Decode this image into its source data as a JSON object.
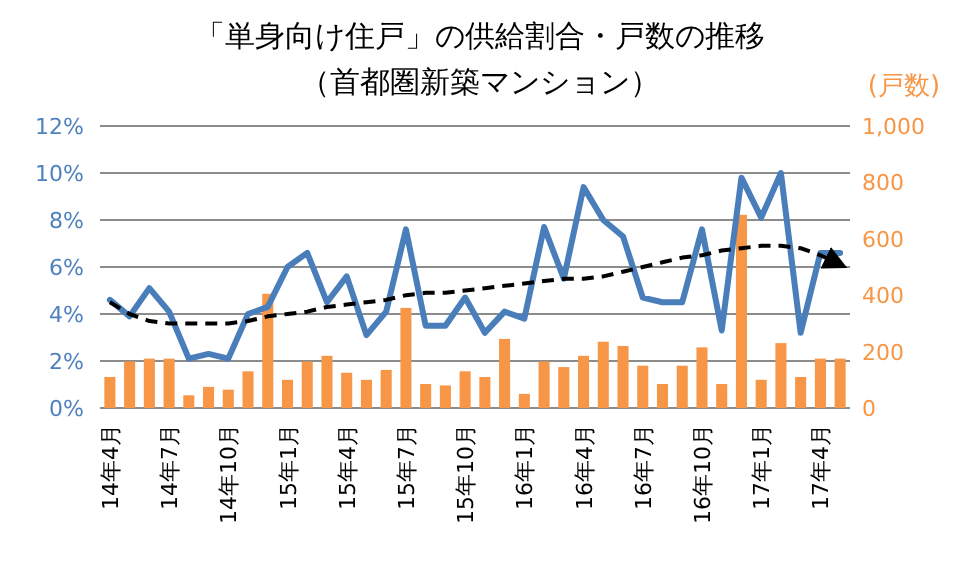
{
  "chart_data": {
    "type": "bar",
    "title": "「単身向け住戸」の供給割合・戸数の推移",
    "subtitle": "（首都圏新築マンション）",
    "y2label": "(戸数)",
    "categories": [
      "14年4月",
      null,
      null,
      "14年7月",
      null,
      null,
      "14年10月",
      null,
      null,
      "15年1月",
      null,
      null,
      "15年4月",
      null,
      null,
      "15年7月",
      null,
      null,
      "15年10月",
      null,
      null,
      "16年1月",
      null,
      null,
      "16年4月",
      null,
      null,
      "16年7月",
      null,
      null,
      "16年10月",
      null,
      null,
      "17年1月",
      null,
      null,
      "17年4月",
      null
    ],
    "series": [
      {
        "axis": "y2",
        "color": "#f79646",
        "values": [
          110,
          165,
          175,
          175,
          45,
          75,
          65,
          130,
          405,
          100,
          165,
          185,
          125,
          100,
          135,
          355,
          85,
          80,
          130,
          110,
          245,
          50,
          165,
          145,
          185,
          235,
          220,
          150,
          85,
          150,
          215,
          85,
          685,
          100,
          230,
          110,
          175,
          175
        ]
      },
      {
        "type": "line",
        "color": "#4a7ebb",
        "values": [
          4.6,
          3.9,
          5.1,
          4.1,
          2.1,
          2.3,
          2.1,
          4.0,
          4.3,
          6.0,
          6.6,
          4.5,
          5.6,
          3.1,
          4.1,
          7.6,
          3.5,
          3.5,
          4.7,
          3.2,
          4.1,
          3.8,
          7.7,
          5.5,
          9.4,
          8.0,
          7.3,
          4.7,
          4.5,
          4.5,
          7.6,
          3.3,
          9.8,
          8.1,
          10.0,
          3.2,
          6.6,
          6.6
        ]
      },
      {
        "type": "line",
        "color": "#000000",
        "line_style": "dashed",
        "values": [
          4.5,
          4.0,
          3.7,
          3.6,
          3.6,
          3.6,
          3.6,
          3.7,
          3.9,
          4.0,
          4.1,
          4.3,
          4.4,
          4.5,
          4.6,
          4.8,
          4.9,
          4.9,
          5.0,
          5.1,
          5.2,
          5.3,
          5.4,
          5.5,
          5.5,
          5.6,
          5.8,
          6.0,
          6.2,
          6.4,
          6.5,
          6.7,
          6.8,
          6.9,
          6.9,
          6.8,
          6.5,
          6.1
        ]
      }
    ],
    "ylim": [
      0,
      12
    ],
    "yticks": [
      {
        "value": 0,
        "label": "0%"
      },
      {
        "value": 2,
        "label": "2%"
      },
      {
        "value": 4,
        "label": "4%"
      },
      {
        "value": 6,
        "label": "6%"
      },
      {
        "value": 8,
        "label": "8%"
      },
      {
        "value": 10,
        "label": "10%"
      },
      {
        "value": 12,
        "label": "12%"
      }
    ],
    "y2lim": [
      0,
      1000
    ],
    "y2ticks": [
      0,
      200,
      400,
      600,
      800,
      {
        "value": 1000,
        "label": "1,000"
      }
    ],
    "grid": "y"
  }
}
